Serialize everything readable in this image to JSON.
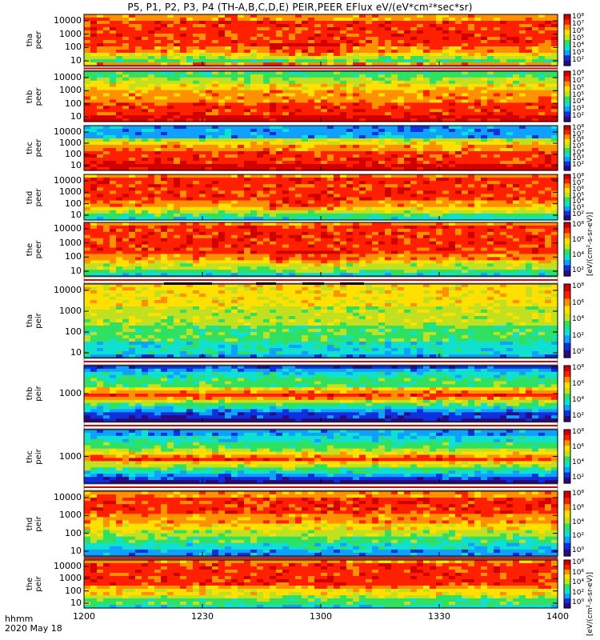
{
  "title": "P5, P1, P2, P3, P4 (TH-A,B,C,D,E) PEIR,PEER EFlux eV/(eV*cm²*sec*sr)",
  "footer": {
    "line1": "hhmm",
    "line2": "2020 May 18"
  },
  "colorbar_labels": {
    "electron": "[eV/(cm²-s-sr-eV)]",
    "ion": "[eV/(cm²-s-sr-eV)]"
  },
  "chart_data": {
    "type": "heatmap",
    "x_unit": "hhmm",
    "xlim": [
      "1200",
      "1400"
    ],
    "x_ticks": [
      "1200",
      "1230",
      "1300",
      "1330",
      "1400"
    ],
    "panels": [
      {
        "probe": "tha",
        "product": "peer",
        "label": "tha\npeer",
        "yscale": "log",
        "y_ticks": [
          "10000",
          "1000",
          "100",
          "10"
        ],
        "cb_ticks": [
          "10⁸",
          "10⁷",
          "10⁶",
          "10⁵",
          "10⁴",
          "10³",
          "10²"
        ]
      },
      {
        "probe": "thb",
        "product": "peer",
        "label": "thb\npeer",
        "yscale": "log",
        "y_ticks": [
          "10000",
          "1000",
          "100",
          "10"
        ],
        "cb_ticks": [
          "10⁸",
          "10⁷",
          "10⁶",
          "10⁵",
          "10⁴",
          "10³",
          "10²"
        ]
      },
      {
        "probe": "thc",
        "product": "peer",
        "label": "thc\npeer",
        "yscale": "log",
        "y_ticks": [
          "10000",
          "1000",
          "100",
          "10"
        ],
        "cb_ticks": [
          "10⁸",
          "10⁷",
          "10⁶",
          "10⁵",
          "10⁴",
          "10³",
          "10²"
        ]
      },
      {
        "probe": "thd",
        "product": "peer",
        "label": "thd\npeer",
        "yscale": "log",
        "y_ticks": [
          "10000",
          "1000",
          "100",
          "10"
        ],
        "cb_ticks": [
          "10⁸",
          "10⁷",
          "10⁶",
          "10⁵",
          "10⁴",
          "10³",
          "10²"
        ]
      },
      {
        "probe": "the",
        "product": "peer",
        "label": "the\npeer",
        "yscale": "log",
        "y_ticks": [
          "10000",
          "1000",
          "100",
          "10"
        ],
        "cb_ticks": [
          "10⁸",
          "10⁶",
          "10⁴",
          "10²"
        ]
      },
      {
        "probe": "tha",
        "product": "peir",
        "label": "tha\npeir",
        "yscale": "log",
        "y_ticks": [
          "10000",
          "1000",
          "100",
          "10"
        ],
        "cb_ticks": [
          "10⁸",
          "10⁶",
          "10⁴",
          "10²",
          "10⁰"
        ]
      },
      {
        "probe": "thb",
        "product": "peir",
        "label": "thb\npeir",
        "yscale": "log",
        "y_ticks": [
          "1000"
        ],
        "cb_ticks": [
          "10⁸",
          "10⁶",
          "10⁴",
          "10²"
        ]
      },
      {
        "probe": "thc",
        "product": "peir",
        "label": "thc\npeir",
        "yscale": "log",
        "y_ticks": [
          "1000"
        ],
        "cb_ticks": [
          "10⁸",
          "10⁶",
          "10⁴",
          "10²"
        ]
      },
      {
        "probe": "thd",
        "product": "peir",
        "label": "thd\npeir",
        "yscale": "log",
        "y_ticks": [
          "10000",
          "1000",
          "100",
          "10"
        ],
        "cb_ticks": [
          "10⁸",
          "10⁶",
          "10⁴",
          "10²",
          "10⁰"
        ]
      },
      {
        "probe": "the",
        "product": "peir",
        "label": "the\npeir",
        "yscale": "log",
        "y_ticks": [
          "10000",
          "1000",
          "100",
          "10"
        ],
        "cb_ticks": [
          "10⁸",
          "10⁶",
          "10⁴",
          "10²",
          "10⁰"
        ]
      }
    ],
    "colormap": [
      "#2a0a80",
      "#1030e0",
      "#10a0ff",
      "#10e0d0",
      "#30e060",
      "#c0e020",
      "#ffe000",
      "#ff9000",
      "#ff2000",
      "#d00000"
    ]
  }
}
